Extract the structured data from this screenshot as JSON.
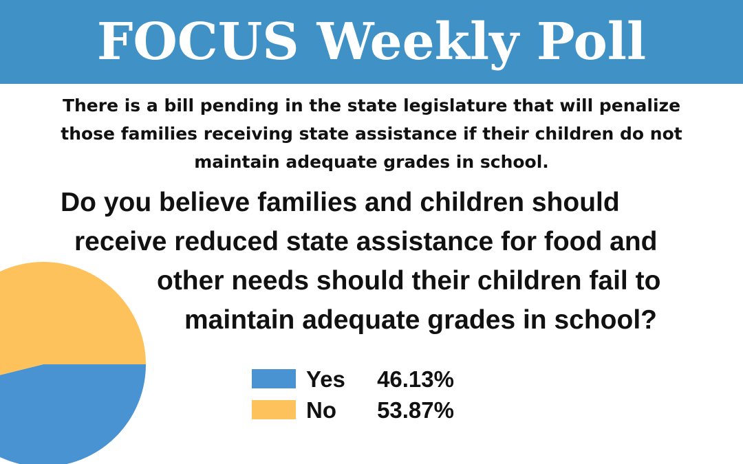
{
  "header": {
    "title": "FOCUS Weekly Poll"
  },
  "intro_lines": [
    "There is a bill pending in the state legislature that will penalize",
    "those families receiving state assistance if their children do not",
    "maintain adequate grades in school."
  ],
  "question_lines": [
    "Do you believe families and children should",
    "receive reduced state assistance for food and",
    "other needs should their children fail to",
    "maintain adequate grades in school?"
  ],
  "chart_data": {
    "type": "pie",
    "categories": [
      "Yes",
      "No"
    ],
    "values": [
      46.13,
      53.87
    ],
    "value_labels": [
      "46.13%",
      "53.87%"
    ],
    "colors": [
      "#4a93d2",
      "#fdc25c"
    ]
  }
}
